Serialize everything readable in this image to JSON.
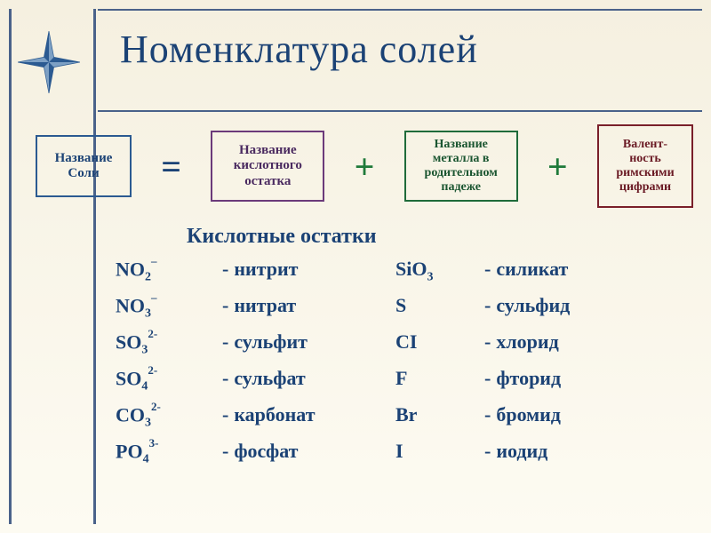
{
  "colors": {
    "text_primary": "#1b4275",
    "box_border_1": "#2b5a91",
    "box_text_1": "#1b4275",
    "box_border_2": "#6b3a7a",
    "box_text_2": "#4a2a60",
    "box_border_3": "#1f6b3a",
    "box_text_3": "#1a5530",
    "box_border_4": "#7a1f2a",
    "box_text_4": "#6a1a24",
    "eq_color": "#1b4275",
    "plus_color": "#1f7a3a",
    "border_line": "#4a628a",
    "star_fill": "#7da0c4",
    "star_dark": "#2b5a91",
    "bg_top": "#f5f0e0",
    "bg_bottom": "#fdfbf2"
  },
  "title": "Номенклатура солей",
  "formula": {
    "box1": {
      "l1": "Название",
      "l2": "Соли"
    },
    "eq": "=",
    "box2": {
      "l1": "Название",
      "l2": "кислотного",
      "l3": "остатка"
    },
    "plus1": "+",
    "box3": {
      "l1": "Название",
      "l2": "металла в",
      "l3": "родительном",
      "l4": "падеже"
    },
    "plus2": "+",
    "box4": {
      "l1": "Валент-",
      "l2": "ность",
      "l3": "римскими",
      "l4": "цифрами"
    }
  },
  "subheader": "Кислотные остатки",
  "residues_left": [
    {
      "base": "NO",
      "sub": "2",
      "sup": "–",
      "name": "нитрит"
    },
    {
      "base": "NO",
      "sub": "3",
      "sup": "–",
      "name": "нитрат"
    },
    {
      "base": "SO",
      "sub": "3",
      "sup": "2-",
      "name": "сульфит"
    },
    {
      "base": "SO",
      "sub": "4",
      "sup": "2-",
      "name": "сульфат"
    },
    {
      "base": "CO",
      "sub": "3",
      "sup": "2-",
      "name": "карбонат"
    },
    {
      "base": "PO",
      "sub": "4",
      "sup": "3-",
      "name": "фосфат"
    }
  ],
  "residues_right": [
    {
      "base": "SiO",
      "sub": "3",
      "sup": "",
      "name": "силикат"
    },
    {
      "base": "S",
      "sub": "",
      "sup": "",
      "name": "сульфид"
    },
    {
      "base": "CI",
      "sub": "",
      "sup": "",
      "name": "хлорид"
    },
    {
      "base": "F",
      "sub": "",
      "sup": "",
      "name": "фторид"
    },
    {
      "base": "Br",
      "sub": "",
      "sup": "",
      "name": "бромид"
    },
    {
      "base": "I",
      "sub": "",
      "sup": "",
      "name": "иодид"
    }
  ]
}
